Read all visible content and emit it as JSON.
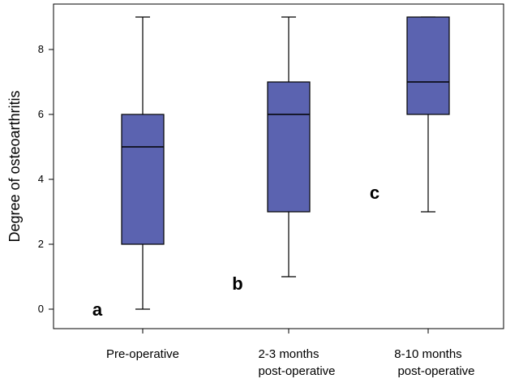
{
  "chart_data": {
    "type": "box",
    "title": "",
    "xlabel": "",
    "ylabel": "Degree of osteoarthritis",
    "ylim": [
      -0.6,
      9.4
    ],
    "yticks": [
      "0",
      "2",
      "4",
      "6",
      "8"
    ],
    "box_color": "#5b63b0",
    "categories": [
      {
        "lines": [
          "Pre-operative"
        ],
        "letter": "a"
      },
      {
        "lines": [
          "2-3 months",
          "post-operative"
        ],
        "letter": "b"
      },
      {
        "lines": [
          "8-10 months",
          "post-operative"
        ],
        "letter": "c"
      }
    ],
    "boxes": [
      {
        "min": 0,
        "q1": 2,
        "median": 5,
        "q3": 6,
        "max": 9
      },
      {
        "min": 1,
        "q1": 3,
        "median": 6,
        "q3": 7,
        "max": 9
      },
      {
        "min": 3,
        "q1": 6,
        "median": 7,
        "q3": 9,
        "max": 9
      }
    ],
    "letter_values": [
      0,
      0.8,
      3.6
    ]
  }
}
